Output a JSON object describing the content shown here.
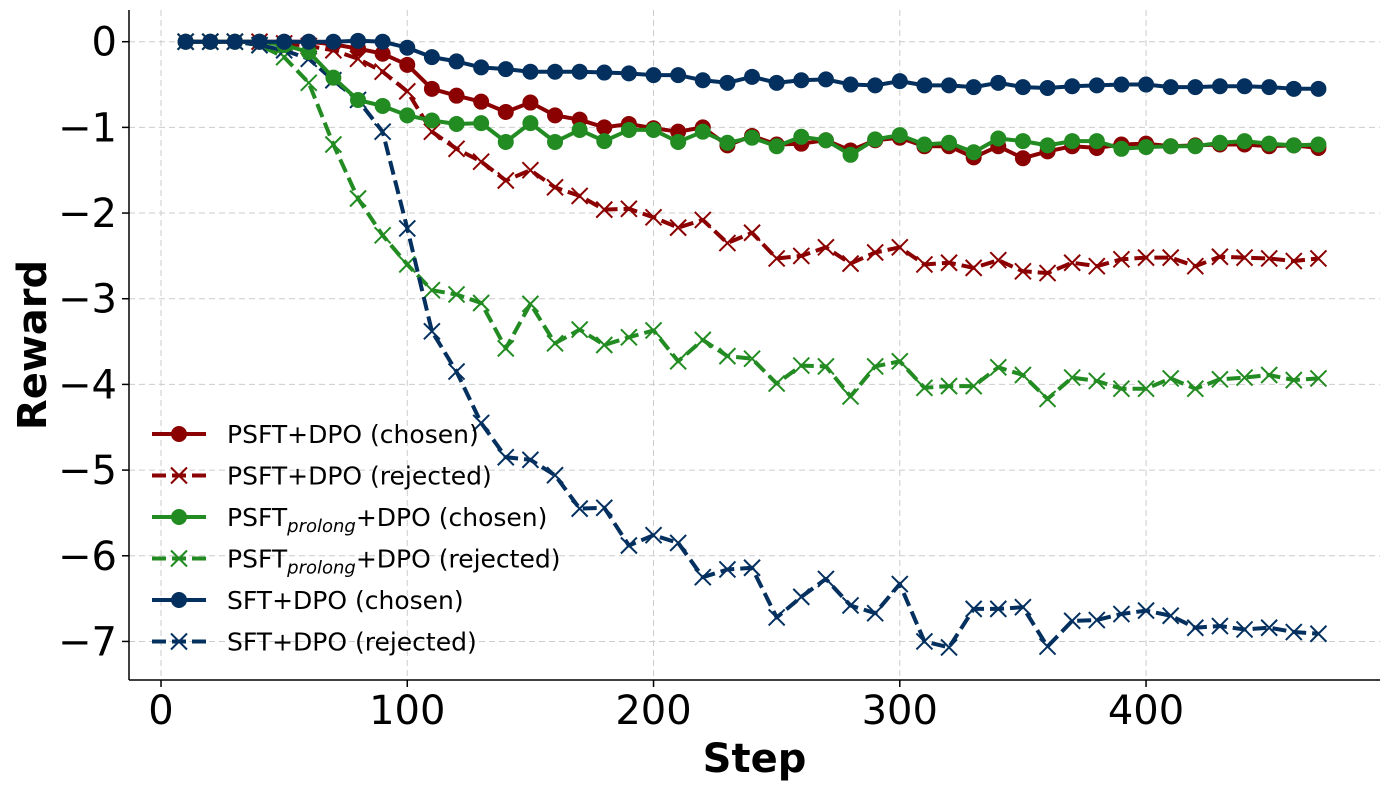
{
  "chart_data": {
    "type": "line",
    "xlabel": "Step",
    "ylabel": "Reward",
    "xlim": [
      -13,
      495
    ],
    "ylim": [
      -7.45,
      0.37
    ],
    "xticks": [
      0,
      100,
      200,
      300,
      400
    ],
    "yticks": [
      0,
      -1,
      -2,
      -3,
      -4,
      -5,
      -6,
      -7
    ],
    "ytick_labels": [
      "0",
      "−1",
      "−2",
      "−3",
      "−4",
      "−5",
      "−6",
      "−7"
    ],
    "grid": true,
    "legend_position": "lower-left",
    "x": [
      10,
      20,
      30,
      40,
      50,
      60,
      70,
      80,
      90,
      100,
      110,
      120,
      130,
      140,
      150,
      160,
      170,
      180,
      190,
      200,
      210,
      220,
      230,
      240,
      250,
      260,
      270,
      280,
      290,
      300,
      310,
      320,
      330,
      340,
      350,
      360,
      370,
      380,
      390,
      400,
      410,
      420,
      430,
      440,
      450,
      460,
      470
    ],
    "series": [
      {
        "name": "PSFT+DPO (chosen)",
        "color": "#8b0000",
        "style": "solid",
        "marker": "circle",
        "values": [
          0,
          0,
          0,
          0,
          0,
          0,
          -0.03,
          -0.08,
          -0.14,
          -0.27,
          -0.55,
          -0.63,
          -0.7,
          -0.82,
          -0.71,
          -0.86,
          -0.91,
          -1.0,
          -0.96,
          -1.01,
          -1.05,
          -1.0,
          -1.21,
          -1.1,
          -1.2,
          -1.19,
          -1.15,
          -1.27,
          -1.15,
          -1.12,
          -1.22,
          -1.22,
          -1.35,
          -1.22,
          -1.36,
          -1.28,
          -1.22,
          -1.24,
          -1.2,
          -1.19,
          -1.22,
          -1.21,
          -1.2,
          -1.2,
          -1.22,
          -1.21,
          -1.24
        ]
      },
      {
        "name": "PSFT+DPO (rejected)",
        "color": "#8b0000",
        "style": "dashed",
        "marker": "x",
        "values": [
          0,
          0,
          0,
          0,
          -0.02,
          -0.05,
          -0.1,
          -0.2,
          -0.35,
          -0.58,
          -1.05,
          -1.25,
          -1.4,
          -1.62,
          -1.5,
          -1.7,
          -1.8,
          -1.96,
          -1.95,
          -2.05,
          -2.17,
          -2.08,
          -2.35,
          -2.23,
          -2.53,
          -2.5,
          -2.4,
          -2.59,
          -2.46,
          -2.4,
          -2.6,
          -2.58,
          -2.64,
          -2.55,
          -2.68,
          -2.7,
          -2.58,
          -2.62,
          -2.54,
          -2.52,
          -2.52,
          -2.62,
          -2.51,
          -2.52,
          -2.53,
          -2.56,
          -2.53
        ]
      },
      {
        "name": "PSFT",
        "name_sub": "prolong",
        "name_suffix": "+DPO (chosen)",
        "color": "#228b22",
        "style": "solid",
        "marker": "circle",
        "values": [
          0,
          0,
          0,
          0,
          -0.04,
          -0.12,
          -0.42,
          -0.68,
          -0.75,
          -0.86,
          -0.92,
          -0.96,
          -0.95,
          -1.17,
          -0.95,
          -1.17,
          -1.03,
          -1.16,
          -1.03,
          -1.03,
          -1.17,
          -1.05,
          -1.18,
          -1.12,
          -1.22,
          -1.11,
          -1.15,
          -1.32,
          -1.14,
          -1.09,
          -1.2,
          -1.18,
          -1.29,
          -1.13,
          -1.16,
          -1.21,
          -1.16,
          -1.16,
          -1.25,
          -1.23,
          -1.22,
          -1.22,
          -1.18,
          -1.16,
          -1.19,
          -1.21,
          -1.2
        ]
      },
      {
        "name": "PSFT",
        "name_sub": "prolong",
        "name_suffix": "+DPO (rejected)",
        "color": "#228b22",
        "style": "dashed",
        "marker": "x",
        "values": [
          0,
          0,
          0,
          -0.04,
          -0.18,
          -0.48,
          -1.2,
          -1.83,
          -2.26,
          -2.6,
          -2.9,
          -2.95,
          -3.05,
          -3.58,
          -3.06,
          -3.52,
          -3.36,
          -3.54,
          -3.45,
          -3.37,
          -3.73,
          -3.48,
          -3.67,
          -3.7,
          -3.99,
          -3.78,
          -3.79,
          -4.14,
          -3.79,
          -3.73,
          -4.04,
          -4.02,
          -4.02,
          -3.8,
          -3.89,
          -4.17,
          -3.92,
          -3.96,
          -4.05,
          -4.05,
          -3.93,
          -4.05,
          -3.94,
          -3.92,
          -3.89,
          -3.95,
          -3.93
        ]
      },
      {
        "name": "SFT+DPO (chosen)",
        "color": "#04305f",
        "style": "solid",
        "marker": "circle",
        "values": [
          0,
          0,
          0,
          0,
          0,
          0,
          0,
          0.01,
          0,
          -0.07,
          -0.18,
          -0.23,
          -0.3,
          -0.32,
          -0.35,
          -0.35,
          -0.35,
          -0.36,
          -0.37,
          -0.39,
          -0.39,
          -0.45,
          -0.48,
          -0.41,
          -0.48,
          -0.45,
          -0.44,
          -0.5,
          -0.51,
          -0.46,
          -0.51,
          -0.51,
          -0.53,
          -0.48,
          -0.53,
          -0.54,
          -0.52,
          -0.51,
          -0.5,
          -0.5,
          -0.53,
          -0.53,
          -0.52,
          -0.52,
          -0.53,
          -0.55,
          -0.55
        ]
      },
      {
        "name": "SFT+DPO (rejected)",
        "color": "#04305f",
        "style": "dashed",
        "marker": "x",
        "values": [
          0,
          0,
          0,
          -0.04,
          -0.1,
          -0.2,
          -0.45,
          -0.68,
          -1.05,
          -2.18,
          -3.38,
          -3.85,
          -4.45,
          -4.85,
          -4.88,
          -5.06,
          -5.45,
          -5.44,
          -5.88,
          -5.76,
          -5.85,
          -6.25,
          -6.16,
          -6.14,
          -6.72,
          -6.48,
          -6.27,
          -6.58,
          -6.67,
          -6.33,
          -7.0,
          -7.07,
          -6.62,
          -6.62,
          -6.6,
          -7.06,
          -6.76,
          -6.75,
          -6.68,
          -6.64,
          -6.7,
          -6.84,
          -6.82,
          -6.86,
          -6.84,
          -6.89,
          -6.91
        ]
      }
    ]
  }
}
